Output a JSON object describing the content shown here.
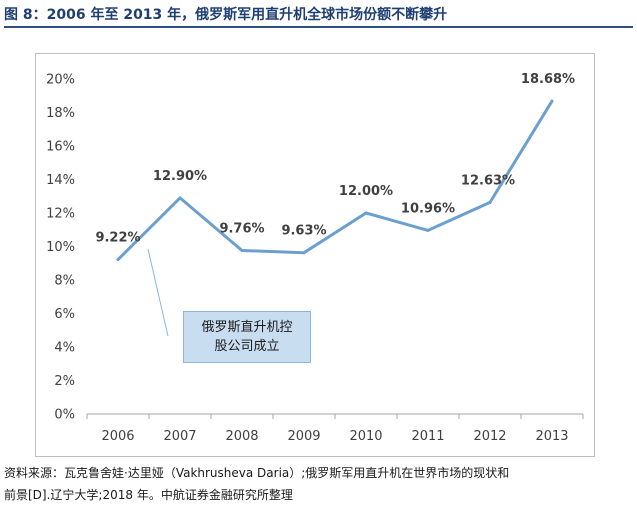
{
  "title": "图 8：2006 年至 2013 年，俄罗斯军用直升机全球市场份额不断攀升",
  "annotation": {
    "line1": "俄罗斯直升机控",
    "line2": "股公司成立"
  },
  "source": {
    "line1": "资料来源：瓦克鲁舍娃·达里娅（Vakhrusheva Daria）;俄罗斯军用直升机在世界市场的现状和",
    "line2": "前景[D].辽宁大学;2018 年。中航证券金融研究所整理"
  },
  "colors": {
    "line": "#6a9fd0",
    "title": "#1f3f73",
    "annotation_fill": "#c9ddf0"
  },
  "chart_data": {
    "type": "line",
    "categories": [
      "2006",
      "2007",
      "2008",
      "2009",
      "2010",
      "2011",
      "2012",
      "2013"
    ],
    "values": [
      9.22,
      12.9,
      9.76,
      9.63,
      12.0,
      10.96,
      12.63,
      18.68
    ],
    "data_labels": [
      "9.22%",
      "12.90%",
      "9.76%",
      "9.63%",
      "12.00%",
      "10.96%",
      "12.63%",
      "18.68%"
    ],
    "y_ticks": [
      "0%",
      "2%",
      "4%",
      "6%",
      "8%",
      "10%",
      "12%",
      "14%",
      "16%",
      "18%",
      "20%"
    ],
    "ylim": [
      0,
      20
    ],
    "ystep": 2,
    "grid": false,
    "legend": "none"
  }
}
